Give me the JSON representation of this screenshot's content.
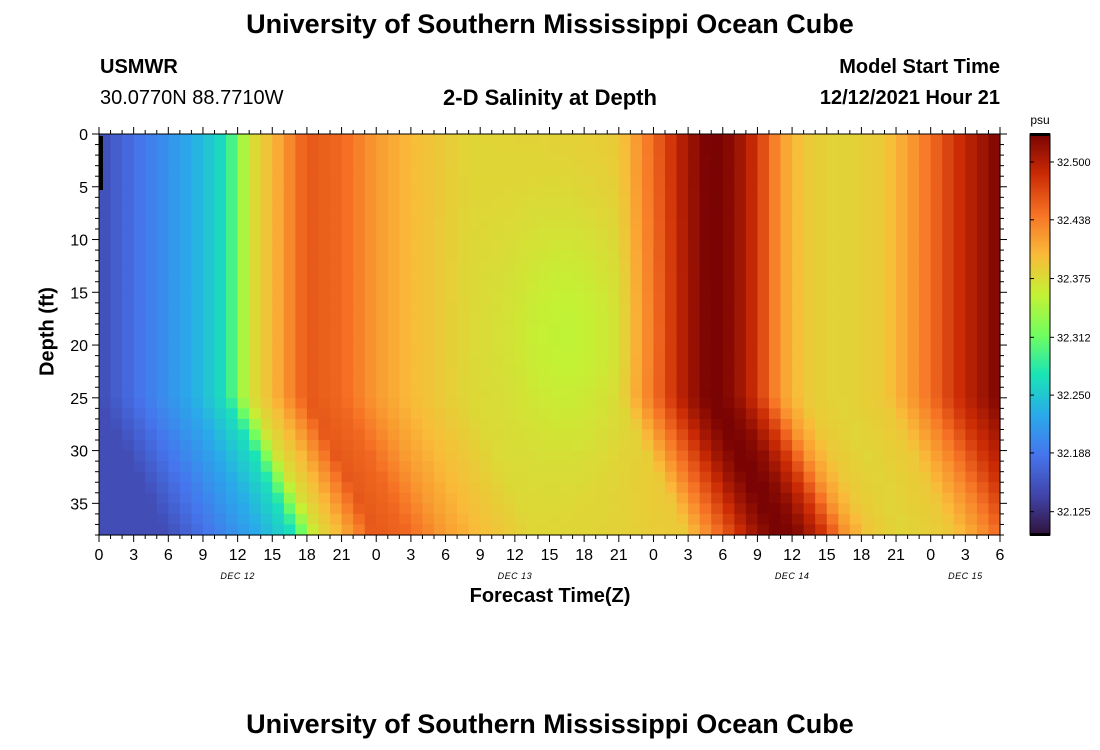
{
  "header": {
    "title": "University of Southern Mississippi Ocean Cube",
    "station": "USMWR",
    "coords": "30.0770N  88.7710W",
    "subtitle": "2-D Salinity at Depth",
    "start_label": "Model Start Time",
    "start_value": "12/12/2021 Hour 21"
  },
  "footer": {
    "title": "University of Southern Mississippi Ocean Cube"
  },
  "chart_data": {
    "type": "heatmap",
    "xlabel": "Forecast Time(Z)",
    "ylabel": "Depth (ft)",
    "colorbar_unit": "psu",
    "x_hours_from_dec12_00z": [
      0,
      78
    ],
    "y_range_ft": [
      0,
      38
    ],
    "x_ticks": [
      "0",
      "3",
      "6",
      "9",
      "12",
      "15",
      "18",
      "21",
      "0",
      "3",
      "6",
      "9",
      "12",
      "15",
      "18",
      "21",
      "0",
      "3",
      "6",
      "9",
      "12",
      "15",
      "18",
      "21",
      "0",
      "3",
      "6"
    ],
    "y_ticks": [
      "0",
      "5",
      "10",
      "15",
      "20",
      "25",
      "30",
      "35"
    ],
    "day_labels": [
      {
        "label": "DEC 12",
        "hour": 12
      },
      {
        "label": "DEC 13",
        "hour": 36
      },
      {
        "label": "DEC 14",
        "hour": 60
      },
      {
        "label": "DEC 15",
        "hour": 75
      }
    ],
    "colorbar_ticks": [
      "32.500",
      "32.438",
      "32.375",
      "32.312",
      "32.250",
      "32.188",
      "32.125"
    ],
    "colorbar_range": [
      32.1,
      32.53
    ],
    "surface_profile": [
      {
        "hour": 0,
        "psu": 32.15
      },
      {
        "hour": 8,
        "psu": 32.23
      },
      {
        "hour": 11,
        "psu": 32.27
      },
      {
        "hour": 12,
        "psu": 32.32
      },
      {
        "hour": 13,
        "psu": 32.37
      },
      {
        "hour": 15,
        "psu": 32.4
      },
      {
        "hour": 17,
        "psu": 32.44
      },
      {
        "hour": 18,
        "psu": 32.46
      },
      {
        "hour": 21,
        "psu": 32.45
      },
      {
        "hour": 24,
        "psu": 32.42
      },
      {
        "hour": 27,
        "psu": 32.4
      },
      {
        "hour": 32,
        "psu": 32.38
      },
      {
        "hour": 40,
        "psu": 32.385
      },
      {
        "hour": 45,
        "psu": 32.39
      },
      {
        "hour": 47,
        "psu": 32.43
      },
      {
        "hour": 49,
        "psu": 32.47
      },
      {
        "hour": 51,
        "psu": 32.51
      },
      {
        "hour": 53,
        "psu": 32.535
      },
      {
        "hour": 55,
        "psu": 32.52
      },
      {
        "hour": 57,
        "psu": 32.48
      },
      {
        "hour": 59,
        "psu": 32.42
      },
      {
        "hour": 61,
        "psu": 32.39
      },
      {
        "hour": 64,
        "psu": 32.38
      },
      {
        "hour": 68,
        "psu": 32.39
      },
      {
        "hour": 71,
        "psu": 32.43
      },
      {
        "hour": 74,
        "psu": 32.48
      },
      {
        "hour": 78,
        "psu": 32.53
      }
    ],
    "mid_depth_freshening": {
      "center_hour": 41,
      "center_depth_ft": 19,
      "half_width_hours": 6,
      "half_depth_ft": 12,
      "delta_psu": -0.03
    },
    "deep_shift_hours_per_ft_below_25": 0.45
  }
}
